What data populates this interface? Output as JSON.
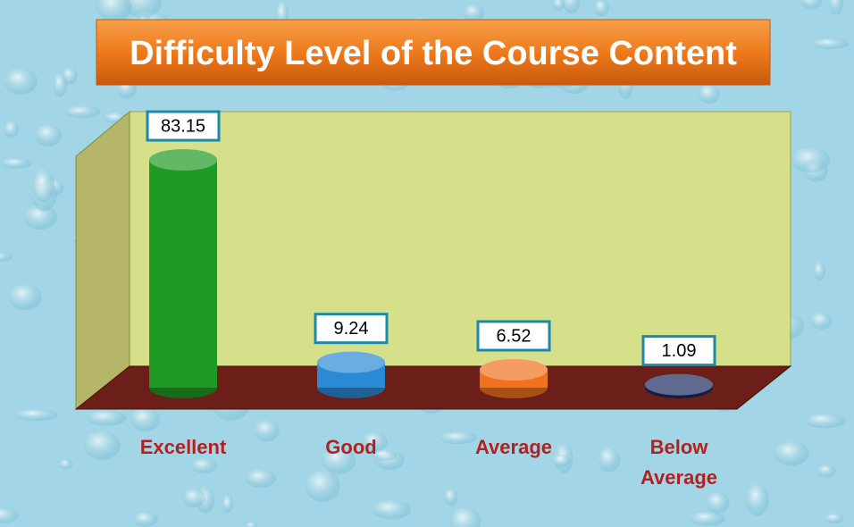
{
  "chart_data": {
    "type": "bar3d",
    "title": "Difficulty Level of the Course Content",
    "categories": [
      "Excellent",
      "Good",
      "Average",
      "Below Average"
    ],
    "values": [
      83.15,
      9.24,
      6.52,
      1.09
    ],
    "colors": [
      "#1f9a22",
      "#2b8ad6",
      "#f0721e",
      "#1b2a5e"
    ]
  }
}
